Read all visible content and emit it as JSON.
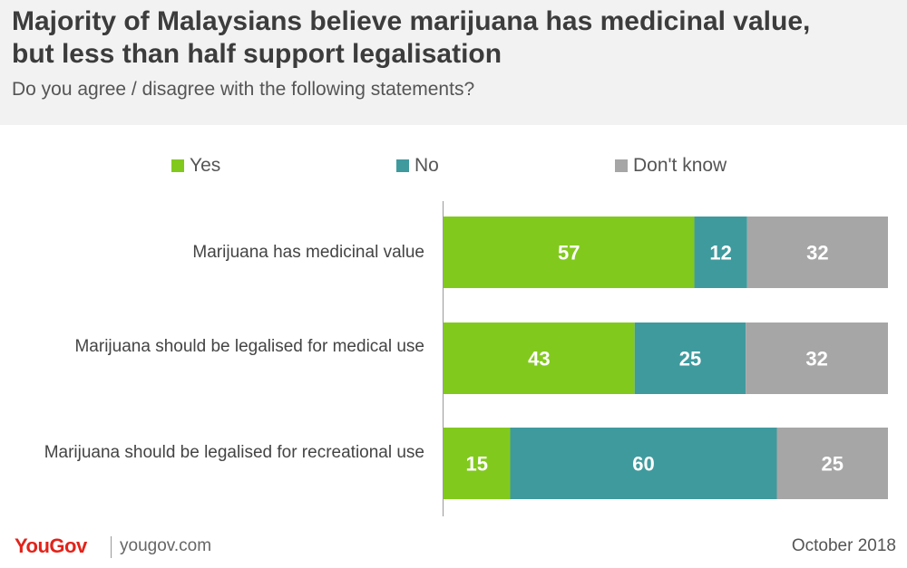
{
  "header": {
    "title_line1": "Majority of Malaysians believe marijuana has medicinal value,",
    "title_line2": "but less than half support legalisation",
    "subtitle": "Do you agree / disagree with the following statements?"
  },
  "footer": {
    "brand": "YouGov",
    "site": "yougov.com",
    "date": "October 2018"
  },
  "chart_data": {
    "type": "bar",
    "orientation": "horizontal",
    "stacked": true,
    "categories": [
      "Marijuana has medicinal value",
      "Marijuana should be legalised for medical use",
      "Marijuana should be legalised for recreational use"
    ],
    "series": [
      {
        "name": "Yes",
        "color": "#82c91e",
        "values": [
          57,
          43,
          15
        ]
      },
      {
        "name": "No",
        "color": "#3f9a9e",
        "values": [
          12,
          25,
          60
        ]
      },
      {
        "name": "Don't know",
        "color": "#a6a6a6",
        "values": [
          32,
          32,
          25
        ]
      }
    ],
    "legend_position": "top",
    "grid": false
  }
}
